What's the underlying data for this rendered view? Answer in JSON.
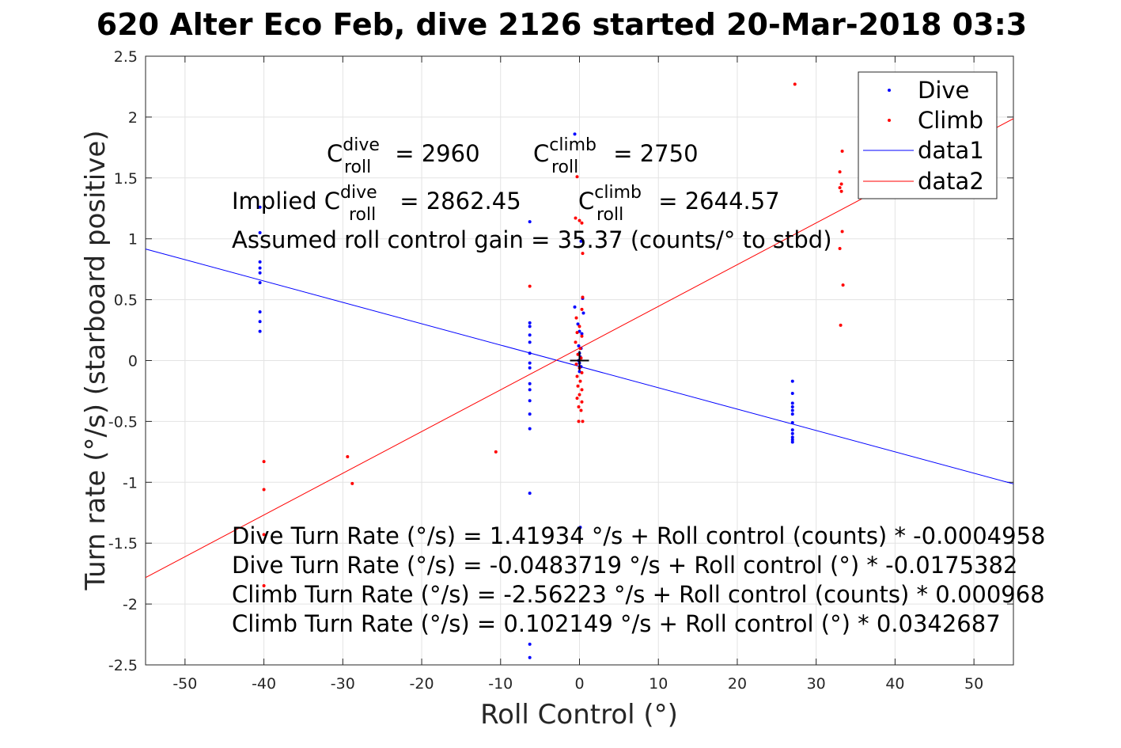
{
  "title": "620 Alter Eco Feb, dive 2126 started 20-Mar-2018 03:3",
  "chart_data": {
    "type": "scatter",
    "xlabel": "Roll Control (°)",
    "ylabel": "Turn rate (°/s) (starboard positive)",
    "xlim": [
      -55,
      55
    ],
    "ylim": [
      -2.5,
      2.5
    ],
    "xticks": [
      -50,
      -40,
      -30,
      -20,
      -10,
      0,
      10,
      20,
      30,
      40,
      50
    ],
    "yticks": [
      -2.5,
      -2,
      -1.5,
      -1,
      -0.5,
      0,
      0.5,
      1,
      1.5,
      2,
      2.5
    ],
    "grid": true,
    "legend_position": "top-right",
    "series": [
      {
        "name": "Dive",
        "kind": "points",
        "color": "#0000ff",
        "points": [
          [
            -40.5,
            1.26
          ],
          [
            -40.5,
            1.05
          ],
          [
            -40.5,
            0.81
          ],
          [
            -40.5,
            0.76
          ],
          [
            -40.5,
            0.72
          ],
          [
            -40.5,
            0.64
          ],
          [
            -40.5,
            0.4
          ],
          [
            -40.5,
            0.32
          ],
          [
            -40.5,
            0.24
          ],
          [
            -6.3,
            1.14
          ],
          [
            -6.3,
            0.31
          ],
          [
            -6.3,
            0.28
          ],
          [
            -6.3,
            0.21
          ],
          [
            -6.3,
            0.15
          ],
          [
            -6.3,
            0.06
          ],
          [
            -6.3,
            -0.02
          ],
          [
            -6.3,
            -0.06
          ],
          [
            -6.3,
            -0.19
          ],
          [
            -6.3,
            -0.24
          ],
          [
            -6.3,
            -0.33
          ],
          [
            -6.3,
            -0.44
          ],
          [
            -6.3,
            -0.56
          ],
          [
            -6.3,
            -1.09
          ],
          [
            -6.3,
            -2.33
          ],
          [
            -6.3,
            -2.44
          ],
          [
            -0.6,
            1.86
          ],
          [
            -0.6,
            0.44
          ],
          [
            0.5,
            0.39
          ],
          [
            -0.2,
            0.3
          ],
          [
            0.0,
            0.24
          ],
          [
            0.3,
            0.22
          ],
          [
            -0.1,
            0.12
          ],
          [
            0.2,
            0.1
          ],
          [
            0.0,
            0.06
          ],
          [
            0.1,
            0.03
          ],
          [
            -0.1,
            0.0
          ],
          [
            0.0,
            -0.02
          ],
          [
            0.2,
            -0.05
          ],
          [
            0.0,
            -0.09
          ],
          [
            0.4,
            0.51
          ],
          [
            0.2,
            0.98
          ],
          [
            0.1,
            -1.37
          ],
          [
            27.0,
            -0.17
          ],
          [
            27.0,
            -0.27
          ],
          [
            27.0,
            -0.35
          ],
          [
            27.0,
            -0.38
          ],
          [
            27.0,
            -0.41
          ],
          [
            27.0,
            -0.44
          ],
          [
            27.0,
            -0.51
          ],
          [
            27.0,
            -0.57
          ],
          [
            27.0,
            -0.6
          ],
          [
            27.0,
            -0.63
          ],
          [
            27.0,
            -0.65
          ],
          [
            27.0,
            -0.67
          ]
        ]
      },
      {
        "name": "Climb",
        "kind": "points",
        "color": "#ff0000",
        "points": [
          [
            -40.0,
            -0.83
          ],
          [
            -40.0,
            -1.06
          ],
          [
            -40.0,
            -1.43
          ],
          [
            -40.0,
            -1.85
          ],
          [
            -29.4,
            -0.79
          ],
          [
            -28.8,
            -1.01
          ],
          [
            -10.6,
            -0.75
          ],
          [
            -6.3,
            0.61
          ],
          [
            -0.3,
            1.51
          ],
          [
            -0.5,
            1.17
          ],
          [
            0.0,
            1.15
          ],
          [
            0.3,
            1.13
          ],
          [
            0.4,
            0.88
          ],
          [
            0.4,
            0.52
          ],
          [
            0.3,
            0.42
          ],
          [
            -0.4,
            0.35
          ],
          [
            0.0,
            0.28
          ],
          [
            -0.3,
            0.23
          ],
          [
            0.3,
            0.2
          ],
          [
            -0.5,
            0.15
          ],
          [
            0.1,
            0.1
          ],
          [
            -0.2,
            0.05
          ],
          [
            0.2,
            0.02
          ],
          [
            -0.4,
            -0.03
          ],
          [
            0.0,
            -0.06
          ],
          [
            0.3,
            -0.1
          ],
          [
            -0.3,
            -0.13
          ],
          [
            0.1,
            -0.17
          ],
          [
            -0.2,
            -0.21
          ],
          [
            0.3,
            -0.24
          ],
          [
            0.0,
            -0.28
          ],
          [
            -0.3,
            -0.31
          ],
          [
            0.3,
            -0.34
          ],
          [
            -0.1,
            -0.38
          ],
          [
            0.2,
            -0.41
          ],
          [
            -0.1,
            -0.5
          ],
          [
            0.4,
            -0.5
          ],
          [
            27.3,
            2.27
          ],
          [
            33.0,
            1.55
          ],
          [
            33.3,
            1.72
          ],
          [
            33.2,
            1.45
          ],
          [
            33.0,
            1.42
          ],
          [
            33.2,
            1.39
          ],
          [
            33.3,
            1.06
          ],
          [
            33.0,
            0.92
          ],
          [
            33.4,
            0.62
          ],
          [
            33.1,
            0.29
          ]
        ]
      },
      {
        "name": "data1",
        "kind": "line",
        "color": "#0000ff",
        "intercept": -0.0483719,
        "slope": -0.0175382
      },
      {
        "name": "data2",
        "kind": "line",
        "color": "#ff0000",
        "intercept": 0.102149,
        "slope": 0.0342687
      }
    ],
    "origin_marker": [
      0,
      0
    ],
    "annotations": {
      "c_dive_label": "C",
      "c_dive_sup": "dive",
      "c_dive_sub": "roll",
      "c_dive_value": " = 2960",
      "c_climb_label": "C",
      "c_climb_sup": "climb",
      "c_climb_sub": "roll",
      "c_climb_value": " = 2750",
      "implied_prefix": "Implied C",
      "implied_dive_sup": "dive",
      "implied_dive_sub": "roll",
      "implied_dive_value": " = 2862.45",
      "implied_climb_label": "C",
      "implied_climb_sup": "climb",
      "implied_climb_sub": "roll",
      "implied_climb_value": " = 2644.57",
      "gain": "Assumed roll control gain = 35.37 (counts/° to stbd)",
      "eq1": "Dive Turn Rate (°/s) = 1.41934 °/s + Roll control (counts) * -0.0004958",
      "eq2": "Dive Turn Rate (°/s) = -0.0483719 °/s + Roll control (°) * -0.0175382",
      "eq3": "Climb Turn Rate (°/s) = -2.56223 °/s + Roll control (counts) * 0.000968",
      "eq4": "Climb Turn Rate (°/s) = 0.102149 °/s + Roll control (°) * 0.0342687"
    }
  }
}
